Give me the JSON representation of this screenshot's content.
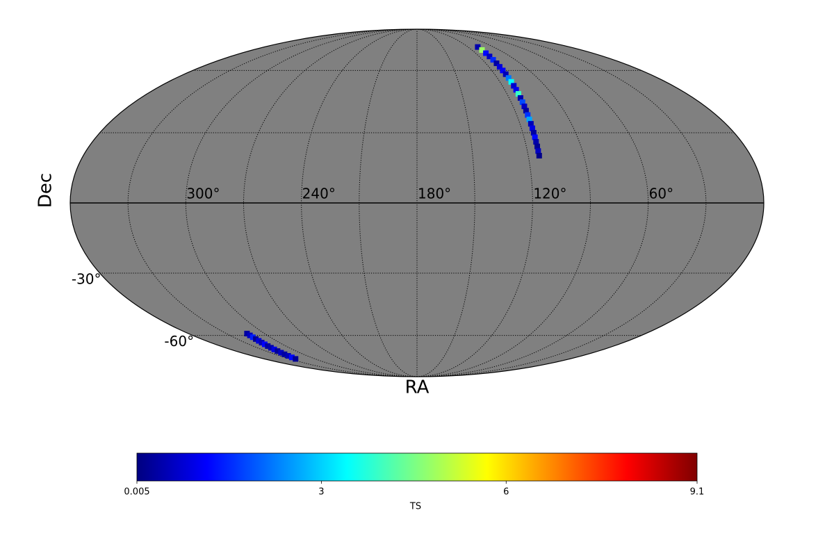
{
  "chart_data": {
    "type": "skymap",
    "projection": "mollweide",
    "xlabel": "RA",
    "ylabel": "Dec",
    "background": "#808080",
    "colormap": "jet",
    "ra_center": 180,
    "ra_grid": [
      30,
      60,
      90,
      120,
      150,
      180,
      210,
      240,
      270,
      300,
      330
    ],
    "dec_grid": [
      -60,
      -30,
      0,
      30,
      60
    ],
    "ra_ticks": [
      {
        "value": 300,
        "label": "300°"
      },
      {
        "value": 240,
        "label": "240°"
      },
      {
        "value": 180,
        "label": "180°"
      },
      {
        "value": 120,
        "label": "120°"
      },
      {
        "value": 60,
        "label": "60°"
      }
    ],
    "dec_ticks": [
      {
        "value": -30,
        "label": "-30°"
      },
      {
        "value": -60,
        "label": "-60°"
      }
    ],
    "series": [
      {
        "ra": [
          108.5,
          109,
          109.5,
          110,
          110.3,
          110.6,
          111,
          111.2,
          111.4,
          111.6,
          111.8,
          112,
          112.2,
          112.4,
          112.6,
          112.8,
          113,
          113.2,
          113.4,
          113.5,
          113.6,
          113.7,
          113.8,
          113.9,
          114,
          114,
          114.1,
          114.1
        ],
        "dec": [
          74,
          72,
          70,
          68,
          66,
          64,
          62,
          60,
          58,
          56,
          54,
          52,
          50,
          48,
          46,
          44,
          42,
          40,
          38,
          36,
          34,
          32,
          30,
          28,
          26,
          24,
          22,
          20
        ],
        "values": [
          0.4,
          4.8,
          1.2,
          0.6,
          1.5,
          0.3,
          0.8,
          1.1,
          0.5,
          2.2,
          3.4,
          0.7,
          1.0,
          3.9,
          0.4,
          1.8,
          0.6,
          0.3,
          1.6,
          2.6,
          0.5,
          0.9,
          0.3,
          1.2,
          0.4,
          0.2,
          0.6,
          0.1
        ]
      },
      {
        "ra": [
          313.8,
          314,
          314.3,
          314.6,
          315,
          315.5,
          316,
          316.6,
          317.2,
          317.8,
          318.5,
          319.2,
          320,
          320.8,
          321.8,
          323
        ],
        "dec": [
          -59,
          -60,
          -61,
          -62,
          -63,
          -64,
          -65,
          -66,
          -67,
          -68,
          -69,
          -70,
          -71,
          -72,
          -73,
          -74
        ],
        "values": [
          0.3,
          0.6,
          1.4,
          0.2,
          0.8,
          0.5,
          1.1,
          0.3,
          0.4,
          0.9,
          0.2,
          0.6,
          0.3,
          0.5,
          1.2,
          0.2
        ]
      }
    ],
    "colorbar": {
      "label": "TS",
      "lim": [
        0.005,
        9.1
      ],
      "ticks": [
        0.005,
        3,
        6,
        9.1
      ]
    }
  }
}
